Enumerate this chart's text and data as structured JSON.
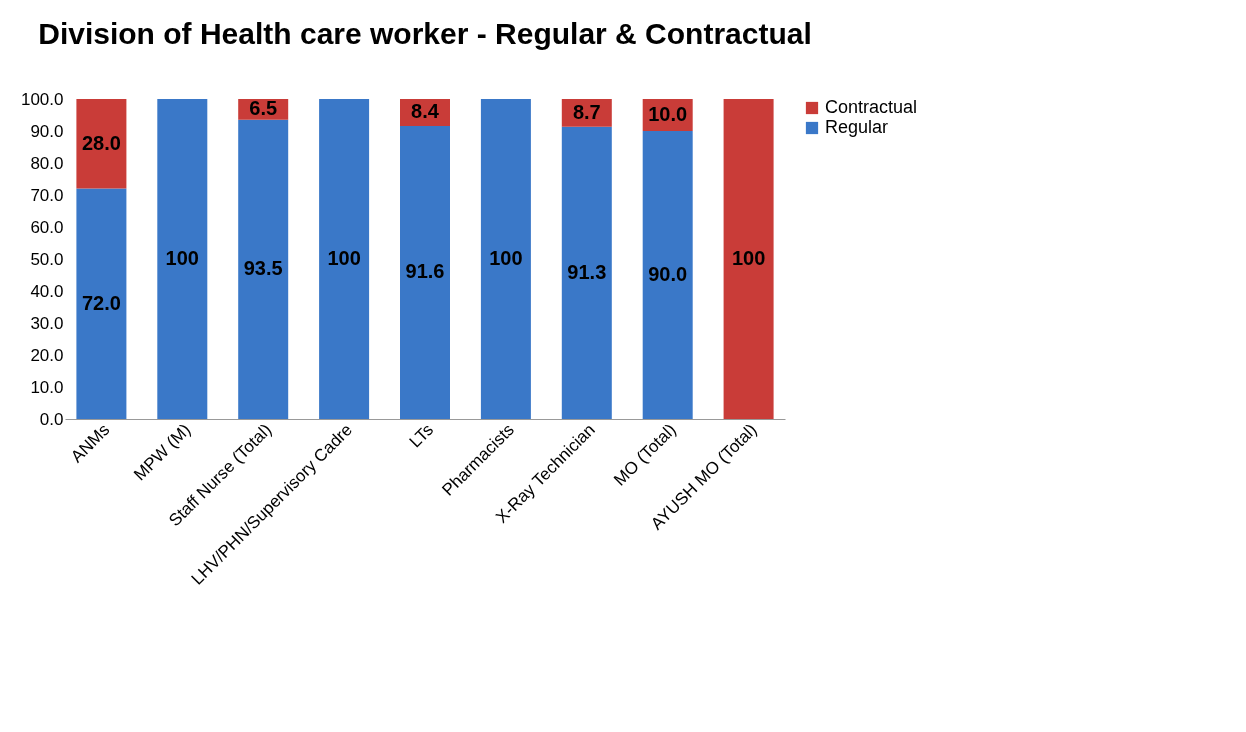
{
  "chart_data": {
    "type": "bar",
    "title": "Division of Health care worker - Regular & Contractual",
    "categories": [
      "ANMs",
      "MPW (M)",
      "Staff Nurse (Total)",
      "LHV/PHN/Supervisory Cadre",
      "LTs",
      "Pharmacists",
      "X-Ray Technician",
      "MO (Total)",
      "AYUSH MO (Total)"
    ],
    "series": [
      {
        "name": "Regular",
        "color": "#3a78c8",
        "values": [
          72.0,
          100,
          93.5,
          100,
          91.6,
          100,
          91.3,
          90.0,
          null
        ],
        "value_labels": [
          "72.0",
          "100",
          "93.5",
          "100",
          "91.6",
          "100",
          "91.3",
          "90.0",
          null
        ]
      },
      {
        "name": "Contractual",
        "color": "#c93c38",
        "values": [
          28.0,
          null,
          6.5,
          null,
          8.4,
          null,
          8.7,
          10.0,
          100
        ],
        "value_labels": [
          "28.0",
          null,
          "6.5",
          null,
          "8.4",
          null,
          "8.7",
          "10.0",
          "100"
        ]
      }
    ],
    "stacked": true,
    "ylim": [
      0,
      100
    ],
    "yticks": [
      {
        "value": 0,
        "label": "0.0"
      },
      {
        "value": 10,
        "label": "10.0"
      },
      {
        "value": 20,
        "label": "20.0"
      },
      {
        "value": 30,
        "label": "30.0"
      },
      {
        "value": 40,
        "label": "40.0"
      },
      {
        "value": 50,
        "label": "50.0"
      },
      {
        "value": 60,
        "label": "60.0"
      },
      {
        "value": 70,
        "label": "70.0"
      },
      {
        "value": 80,
        "label": "80.0"
      },
      {
        "value": 90,
        "label": "90.0"
      },
      {
        "value": 100,
        "label": "100.0"
      }
    ],
    "grid": false,
    "legend": "right"
  }
}
